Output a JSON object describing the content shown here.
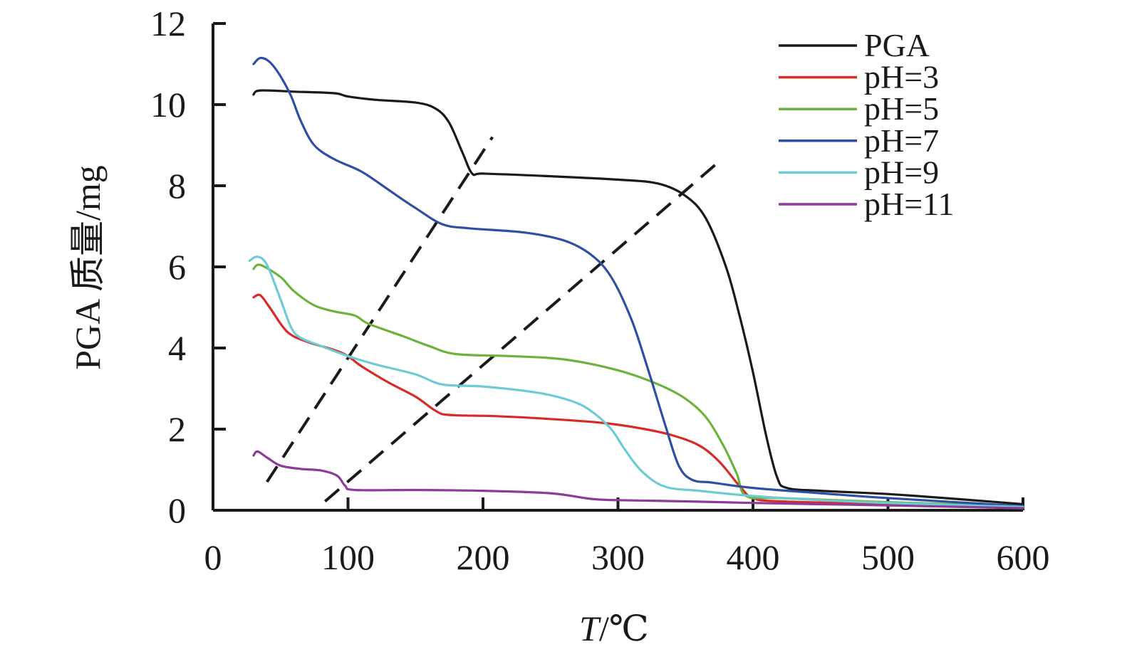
{
  "chart_data": {
    "type": "line",
    "xlabel": "T/℃",
    "ylabel": "PGA 质量/mg",
    "xlim": [
      0,
      600
    ],
    "ylim": [
      0,
      12
    ],
    "x_ticks": [
      "0",
      "100",
      "200",
      "300",
      "400",
      "500",
      "600"
    ],
    "y_ticks": [
      "0",
      "2",
      "4",
      "6",
      "8",
      "10",
      "12"
    ],
    "grid": false,
    "legend_position": "top-right",
    "series": [
      {
        "name": "PGA",
        "color": "#1a1a1a",
        "points": [
          [
            30,
            10.25
          ],
          [
            35,
            10.35
          ],
          [
            60,
            10.32
          ],
          [
            90,
            10.28
          ],
          [
            100,
            10.2
          ],
          [
            120,
            10.12
          ],
          [
            150,
            10.05
          ],
          [
            165,
            9.9
          ],
          [
            175,
            9.55
          ],
          [
            185,
            8.8
          ],
          [
            192,
            8.3
          ],
          [
            200,
            8.3
          ],
          [
            240,
            8.25
          ],
          [
            300,
            8.15
          ],
          [
            330,
            8.05
          ],
          [
            350,
            7.75
          ],
          [
            365,
            7.2
          ],
          [
            380,
            6.0
          ],
          [
            390,
            4.8
          ],
          [
            400,
            3.4
          ],
          [
            410,
            1.8
          ],
          [
            418,
            0.8
          ],
          [
            425,
            0.55
          ],
          [
            450,
            0.48
          ],
          [
            500,
            0.4
          ],
          [
            550,
            0.28
          ],
          [
            600,
            0.15
          ]
        ]
      },
      {
        "name": "pH=3",
        "color": "#d62b27",
        "points": [
          [
            30,
            5.25
          ],
          [
            35,
            5.3
          ],
          [
            42,
            5.0
          ],
          [
            55,
            4.4
          ],
          [
            70,
            4.15
          ],
          [
            90,
            3.95
          ],
          [
            100,
            3.8
          ],
          [
            110,
            3.55
          ],
          [
            130,
            3.15
          ],
          [
            150,
            2.8
          ],
          [
            165,
            2.45
          ],
          [
            175,
            2.35
          ],
          [
            210,
            2.32
          ],
          [
            250,
            2.25
          ],
          [
            290,
            2.15
          ],
          [
            320,
            2.0
          ],
          [
            340,
            1.85
          ],
          [
            360,
            1.6
          ],
          [
            375,
            1.2
          ],
          [
            390,
            0.6
          ],
          [
            400,
            0.3
          ],
          [
            420,
            0.22
          ],
          [
            500,
            0.15
          ],
          [
            600,
            0.05
          ]
        ]
      },
      {
        "name": "pH=5",
        "color": "#6cb33e",
        "points": [
          [
            30,
            5.95
          ],
          [
            35,
            6.05
          ],
          [
            50,
            5.75
          ],
          [
            60,
            5.4
          ],
          [
            75,
            5.05
          ],
          [
            90,
            4.9
          ],
          [
            105,
            4.8
          ],
          [
            115,
            4.6
          ],
          [
            140,
            4.3
          ],
          [
            160,
            4.05
          ],
          [
            180,
            3.85
          ],
          [
            220,
            3.8
          ],
          [
            260,
            3.72
          ],
          [
            300,
            3.45
          ],
          [
            330,
            3.1
          ],
          [
            350,
            2.75
          ],
          [
            365,
            2.3
          ],
          [
            378,
            1.6
          ],
          [
            388,
            0.9
          ],
          [
            395,
            0.35
          ],
          [
            420,
            0.3
          ],
          [
            500,
            0.2
          ],
          [
            600,
            0.1
          ]
        ]
      },
      {
        "name": "pH=7",
        "color": "#2e4fa3",
        "points": [
          [
            30,
            11.0
          ],
          [
            35,
            11.15
          ],
          [
            42,
            11.05
          ],
          [
            50,
            10.7
          ],
          [
            58,
            10.2
          ],
          [
            65,
            9.6
          ],
          [
            75,
            9.0
          ],
          [
            90,
            8.65
          ],
          [
            110,
            8.35
          ],
          [
            130,
            7.9
          ],
          [
            150,
            7.45
          ],
          [
            170,
            7.05
          ],
          [
            190,
            6.95
          ],
          [
            230,
            6.85
          ],
          [
            260,
            6.65
          ],
          [
            280,
            6.3
          ],
          [
            295,
            5.75
          ],
          [
            310,
            4.7
          ],
          [
            322,
            3.5
          ],
          [
            335,
            2.1
          ],
          [
            345,
            1.1
          ],
          [
            355,
            0.75
          ],
          [
            370,
            0.68
          ],
          [
            400,
            0.55
          ],
          [
            450,
            0.42
          ],
          [
            500,
            0.3
          ],
          [
            600,
            0.1
          ]
        ]
      },
      {
        "name": "pH=9",
        "color": "#6ecad3",
        "points": [
          [
            27,
            6.15
          ],
          [
            33,
            6.25
          ],
          [
            40,
            6.05
          ],
          [
            50,
            5.2
          ],
          [
            58,
            4.5
          ],
          [
            65,
            4.25
          ],
          [
            80,
            4.05
          ],
          [
            100,
            3.8
          ],
          [
            120,
            3.6
          ],
          [
            150,
            3.35
          ],
          [
            170,
            3.1
          ],
          [
            200,
            3.05
          ],
          [
            240,
            2.9
          ],
          [
            265,
            2.7
          ],
          [
            280,
            2.45
          ],
          [
            295,
            2.0
          ],
          [
            305,
            1.5
          ],
          [
            318,
            0.95
          ],
          [
            335,
            0.58
          ],
          [
            360,
            0.48
          ],
          [
            400,
            0.35
          ],
          [
            450,
            0.25
          ],
          [
            500,
            0.18
          ],
          [
            600,
            0.08
          ]
        ]
      },
      {
        "name": "pH=11",
        "color": "#8a3c96",
        "points": [
          [
            30,
            1.35
          ],
          [
            33,
            1.45
          ],
          [
            40,
            1.3
          ],
          [
            50,
            1.1
          ],
          [
            65,
            1.02
          ],
          [
            80,
            0.98
          ],
          [
            92,
            0.85
          ],
          [
            98,
            0.6
          ],
          [
            105,
            0.5
          ],
          [
            150,
            0.5
          ],
          [
            200,
            0.48
          ],
          [
            250,
            0.42
          ],
          [
            280,
            0.28
          ],
          [
            300,
            0.25
          ],
          [
            350,
            0.22
          ],
          [
            400,
            0.18
          ],
          [
            450,
            0.15
          ],
          [
            500,
            0.12
          ],
          [
            600,
            0.05
          ]
        ]
      }
    ],
    "guides": [
      {
        "style": "dashed",
        "points": [
          [
            40,
            0.7
          ],
          [
            207,
            9.2
          ]
        ]
      },
      {
        "style": "dashed",
        "points": [
          [
            83,
            0.22
          ],
          [
            375,
            8.6
          ]
        ]
      }
    ]
  }
}
